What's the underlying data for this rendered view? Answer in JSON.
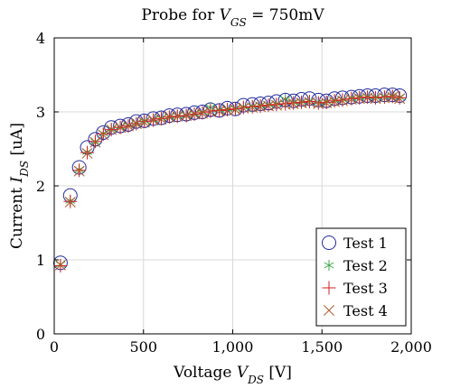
{
  "chart_data": {
    "type": "scatter",
    "title": "Probe for VGS = 750mV",
    "title_parts": {
      "prefix": "Probe for ",
      "var": "V",
      "sub": "GS",
      "suffix": " = 750mV"
    },
    "xlabel": "Voltage VDS [V]",
    "xlabel_parts": {
      "prefix": "Voltage ",
      "var": "V",
      "sub": "DS",
      "suffix": " [V]"
    },
    "ylabel": "Current IDS [uA]",
    "ylabel_parts": {
      "prefix": "Current ",
      "var": "I",
      "sub": "DS",
      "suffix": " [uA]"
    },
    "xlim": [
      0,
      2000
    ],
    "ylim": [
      0,
      4
    ],
    "xticks": [
      0,
      500,
      1000,
      1500,
      2000
    ],
    "xtick_labels": [
      "0",
      "500",
      "1,000",
      "1,500",
      "2,000"
    ],
    "yticks": [
      0,
      1,
      2,
      3,
      4
    ],
    "ytick_labels": [
      "0",
      "1",
      "2",
      "3",
      "4"
    ],
    "grid": true,
    "legend_position": "bottom-right",
    "x": [
      35,
      90,
      140,
      185,
      230,
      275,
      320,
      370,
      415,
      460,
      505,
      555,
      600,
      645,
      690,
      740,
      785,
      830,
      875,
      925,
      970,
      1015,
      1060,
      1110,
      1155,
      1200,
      1245,
      1295,
      1340,
      1385,
      1430,
      1480,
      1525,
      1570,
      1615,
      1665,
      1710,
      1755,
      1800,
      1850,
      1895,
      1935
    ],
    "series": [
      {
        "name": "Test 1",
        "marker": "circle",
        "color": "#1f2a9c",
        "values": [
          0.96,
          1.87,
          2.25,
          2.52,
          2.63,
          2.72,
          2.79,
          2.81,
          2.83,
          2.87,
          2.88,
          2.91,
          2.92,
          2.95,
          2.96,
          2.97,
          2.99,
          3.0,
          3.03,
          3.02,
          3.05,
          3.04,
          3.09,
          3.1,
          3.11,
          3.12,
          3.14,
          3.16,
          3.15,
          3.17,
          3.18,
          3.16,
          3.15,
          3.18,
          3.19,
          3.2,
          3.21,
          3.22,
          3.22,
          3.23,
          3.23,
          3.22
        ]
      },
      {
        "name": "Test 2",
        "marker": "star",
        "color": "#3aa845",
        "values": [
          0.94,
          1.8,
          2.22,
          2.46,
          2.6,
          2.71,
          2.77,
          2.8,
          2.82,
          2.85,
          2.88,
          2.9,
          2.92,
          2.94,
          2.95,
          2.96,
          2.98,
          3.0,
          3.06,
          3.03,
          3.04,
          3.05,
          3.07,
          3.08,
          3.09,
          3.1,
          3.11,
          3.17,
          3.13,
          3.14,
          3.15,
          3.13,
          3.14,
          3.16,
          3.17,
          3.19,
          3.2,
          3.21,
          3.2,
          3.21,
          3.22,
          3.2
        ]
      },
      {
        "name": "Test 3",
        "marker": "plus",
        "color": "#d11f1f",
        "values": [
          0.92,
          1.79,
          2.21,
          2.45,
          2.6,
          2.7,
          2.76,
          2.79,
          2.81,
          2.84,
          2.87,
          2.89,
          2.91,
          2.93,
          2.94,
          2.95,
          2.97,
          2.99,
          3.01,
          3.02,
          3.03,
          3.04,
          3.06,
          3.07,
          3.08,
          3.09,
          3.1,
          3.11,
          3.12,
          3.13,
          3.14,
          3.12,
          3.13,
          3.15,
          3.16,
          3.18,
          3.19,
          3.2,
          3.19,
          3.2,
          3.21,
          3.19
        ]
      },
      {
        "name": "Test 4",
        "marker": "cross",
        "color": "#b05a28",
        "values": [
          0.93,
          1.78,
          2.2,
          2.44,
          2.59,
          2.69,
          2.76,
          2.79,
          2.81,
          2.84,
          2.86,
          2.89,
          2.9,
          2.93,
          2.94,
          2.95,
          2.97,
          2.98,
          3.0,
          3.01,
          3.02,
          3.03,
          3.05,
          3.06,
          3.07,
          3.08,
          3.09,
          3.1,
          3.11,
          3.12,
          3.13,
          3.11,
          3.12,
          3.14,
          3.15,
          3.17,
          3.18,
          3.19,
          3.18,
          3.19,
          3.2,
          3.18
        ]
      }
    ]
  }
}
